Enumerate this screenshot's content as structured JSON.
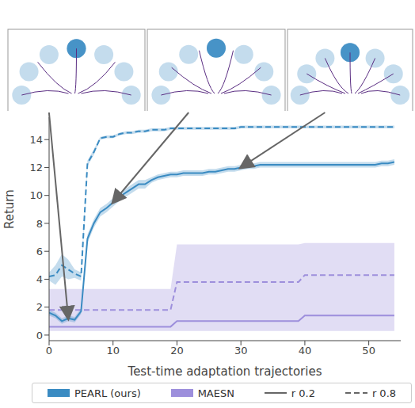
{
  "chart_data": {
    "type": "line",
    "xlabel": "Test-time adaptation trajectories",
    "ylabel": "Return",
    "x": [
      0,
      1,
      2,
      3,
      4,
      5,
      6,
      7,
      8,
      9,
      10,
      11,
      12,
      13,
      14,
      15,
      16,
      17,
      18,
      19,
      20,
      21,
      22,
      23,
      24,
      25,
      26,
      27,
      28,
      29,
      30,
      31,
      32,
      33,
      34,
      35,
      36,
      37,
      38,
      39,
      40,
      41,
      42,
      43,
      44,
      45,
      46,
      47,
      48,
      49,
      50,
      51,
      52,
      53,
      54
    ],
    "xlim": [
      0,
      55
    ],
    "xticks": [
      0,
      10,
      20,
      30,
      40,
      50
    ],
    "ylim": [
      -0.4,
      15.6
    ],
    "yticks": [
      0,
      2,
      4,
      6,
      8,
      10,
      12,
      14
    ],
    "legend": "bottom",
    "series": [
      {
        "name": "MAESN",
        "color": "#9d8fdc",
        "series": [
          {
            "name": "r 0.2",
            "line_style": "solid",
            "values": [
              0.6,
              0.6,
              0.6,
              0.6,
              0.6,
              0.6,
              0.6,
              0.6,
              0.6,
              0.6,
              0.6,
              0.6,
              0.6,
              0.6,
              0.6,
              0.6,
              0.6,
              0.6,
              0.6,
              0.6,
              1.0,
              1.0,
              1.0,
              1.0,
              1.0,
              1.0,
              1.0,
              1.0,
              1.0,
              1.0,
              1.0,
              1.0,
              1.0,
              1.0,
              1.0,
              1.0,
              1.0,
              1.0,
              1.0,
              1.0,
              1.4,
              1.4,
              1.4,
              1.4,
              1.4,
              1.4,
              1.4,
              1.4,
              1.4,
              1.4,
              1.4,
              1.4,
              1.4,
              1.4,
              1.4
            ]
          },
          {
            "name": "r 0.8",
            "line_style": "dashed",
            "values": [
              1.8,
              1.8,
              1.8,
              1.8,
              1.8,
              1.8,
              1.8,
              1.8,
              1.8,
              1.8,
              1.8,
              1.8,
              1.8,
              1.8,
              1.8,
              1.8,
              1.8,
              1.8,
              1.8,
              1.8,
              3.8,
              3.8,
              3.8,
              3.8,
              3.8,
              3.8,
              3.8,
              3.8,
              3.8,
              3.8,
              3.8,
              3.8,
              3.8,
              3.8,
              3.8,
              3.8,
              3.8,
              3.8,
              3.8,
              3.8,
              4.3,
              4.3,
              4.3,
              4.3,
              4.3,
              4.3,
              4.3,
              4.3,
              4.3,
              4.3,
              4.3,
              4.3,
              4.3,
              4.3,
              4.3
            ],
            "lower": [
              0.3,
              0.3,
              0.3,
              0.3,
              0.3,
              0.3,
              0.3,
              0.3,
              0.3,
              0.3,
              0.3,
              0.3,
              0.3,
              0.3,
              0.3,
              0.3,
              0.3,
              0.3,
              0.3,
              0.3,
              0.3,
              0.3,
              0.3,
              0.3,
              0.3,
              0.3,
              0.3,
              0.3,
              0.3,
              0.3,
              0.3,
              0.3,
              0.3,
              0.3,
              0.3,
              0.3,
              0.3,
              0.3,
              0.3,
              0.3,
              0.3,
              0.3,
              0.3,
              0.3,
              0.3,
              0.3,
              0.3,
              0.3,
              0.3,
              0.3,
              0.3,
              0.3,
              0.3,
              0.3,
              0.3
            ],
            "upper": [
              3.3,
              3.3,
              3.3,
              3.3,
              3.3,
              3.3,
              3.3,
              3.3,
              3.3,
              3.3,
              3.3,
              3.3,
              3.3,
              3.3,
              3.3,
              3.3,
              3.3,
              3.3,
              3.3,
              3.3,
              6.5,
              6.5,
              6.5,
              6.5,
              6.5,
              6.5,
              6.5,
              6.5,
              6.5,
              6.5,
              6.5,
              6.5,
              6.5,
              6.5,
              6.5,
              6.5,
              6.5,
              6.5,
              6.5,
              6.5,
              6.6,
              6.6,
              6.6,
              6.6,
              6.6,
              6.6,
              6.6,
              6.6,
              6.6,
              6.6,
              6.6,
              6.6,
              6.6,
              6.6,
              6.6
            ]
          }
        ]
      },
      {
        "name": "PEARL (ours)",
        "color": "#3a8bc2",
        "series": [
          {
            "name": "r 0.2",
            "line_style": "solid",
            "values": [
              1.6,
              1.4,
              1.0,
              1.2,
              1.1,
              1.7,
              6.9,
              8.0,
              8.8,
              9.1,
              9.5,
              9.9,
              10.2,
              10.5,
              10.8,
              10.8,
              11.1,
              11.3,
              11.4,
              11.5,
              11.5,
              11.6,
              11.6,
              11.6,
              11.6,
              11.7,
              11.7,
              11.8,
              11.9,
              11.9,
              12.0,
              12.1,
              12.1,
              12.2,
              12.2,
              12.2,
              12.2,
              12.2,
              12.2,
              12.2,
              12.2,
              12.2,
              12.2,
              12.2,
              12.2,
              12.2,
              12.2,
              12.2,
              12.2,
              12.2,
              12.2,
              12.2,
              12.3,
              12.3,
              12.4
            ],
            "lower": [
              1.4,
              1.2,
              0.8,
              1.0,
              0.9,
              1.5,
              6.6,
              7.7,
              8.5,
              8.8,
              9.2,
              9.6,
              9.9,
              10.2,
              10.5,
              10.5,
              10.9,
              11.1,
              11.2,
              11.3,
              11.3,
              11.4,
              11.4,
              11.4,
              11.4,
              11.5,
              11.5,
              11.6,
              11.7,
              11.7,
              11.8,
              11.9,
              11.9,
              12.0,
              12.0,
              12.0,
              12.0,
              12.0,
              12.0,
              12.0,
              12.0,
              12.0,
              12.0,
              12.0,
              12.0,
              12.0,
              12.0,
              12.0,
              12.0,
              12.0,
              12.0,
              12.0,
              12.1,
              12.1,
              12.2
            ],
            "upper": [
              1.8,
              1.6,
              1.2,
              1.4,
              1.3,
              1.9,
              7.2,
              8.3,
              9.1,
              9.4,
              9.8,
              10.2,
              10.5,
              10.8,
              11.1,
              11.1,
              11.3,
              11.5,
              11.6,
              11.7,
              11.7,
              11.8,
              11.8,
              11.8,
              11.8,
              11.9,
              11.9,
              12.0,
              12.1,
              12.1,
              12.2,
              12.3,
              12.3,
              12.4,
              12.4,
              12.4,
              12.4,
              12.4,
              12.4,
              12.4,
              12.4,
              12.4,
              12.4,
              12.4,
              12.4,
              12.4,
              12.4,
              12.4,
              12.4,
              12.4,
              12.4,
              12.4,
              12.5,
              12.5,
              12.6
            ]
          },
          {
            "name": "r 0.8",
            "line_style": "dashed",
            "values": [
              4.2,
              4.3,
              5.0,
              4.7,
              4.4,
              4.2,
              12.3,
              13.1,
              14.1,
              14.2,
              14.2,
              14.4,
              14.5,
              14.5,
              14.6,
              14.6,
              14.7,
              14.7,
              14.7,
              14.8,
              14.8,
              14.8,
              14.8,
              14.8,
              14.8,
              14.8,
              14.8,
              14.8,
              14.8,
              14.8,
              14.9,
              14.9,
              14.9,
              14.9,
              14.9,
              14.9,
              14.9,
              14.9,
              14.9,
              14.9,
              14.9,
              14.9,
              14.9,
              14.9,
              14.9,
              14.9,
              14.9,
              14.9,
              14.9,
              14.9,
              14.9,
              14.9,
              14.9,
              14.9,
              14.9
            ],
            "lower": [
              3.9,
              3.6,
              4.2,
              4.0,
              4.1,
              3.9,
              12.1,
              12.9,
              14.0,
              14.1,
              14.1,
              14.3,
              14.4,
              14.4,
              14.5,
              14.5,
              14.6,
              14.6,
              14.6,
              14.7,
              14.7,
              14.7,
              14.7,
              14.7,
              14.7,
              14.7,
              14.7,
              14.7,
              14.7,
              14.7,
              14.8,
              14.8,
              14.8,
              14.8,
              14.8,
              14.8,
              14.8,
              14.8,
              14.8,
              14.8,
              14.8,
              14.8,
              14.8,
              14.8,
              14.8,
              14.8,
              14.8,
              14.8,
              14.8,
              14.8,
              14.8,
              14.8,
              14.8,
              14.8,
              14.8
            ],
            "upper": [
              4.5,
              5.0,
              5.8,
              5.4,
              4.7,
              4.5,
              12.5,
              13.3,
              14.2,
              14.3,
              14.3,
              14.5,
              14.6,
              14.6,
              14.7,
              14.7,
              14.8,
              14.8,
              14.8,
              14.9,
              14.9,
              14.9,
              14.9,
              14.9,
              14.9,
              14.9,
              14.9,
              14.9,
              14.9,
              14.9,
              15.0,
              15.0,
              15.0,
              15.0,
              15.0,
              15.0,
              15.0,
              15.0,
              15.0,
              15.0,
              15.0,
              15.0,
              15.0,
              15.0,
              15.0,
              15.0,
              15.0,
              15.0,
              15.0,
              15.0,
              15.0,
              15.0,
              15.0,
              15.0,
              15.0
            ]
          }
        ]
      }
    ]
  }
}
